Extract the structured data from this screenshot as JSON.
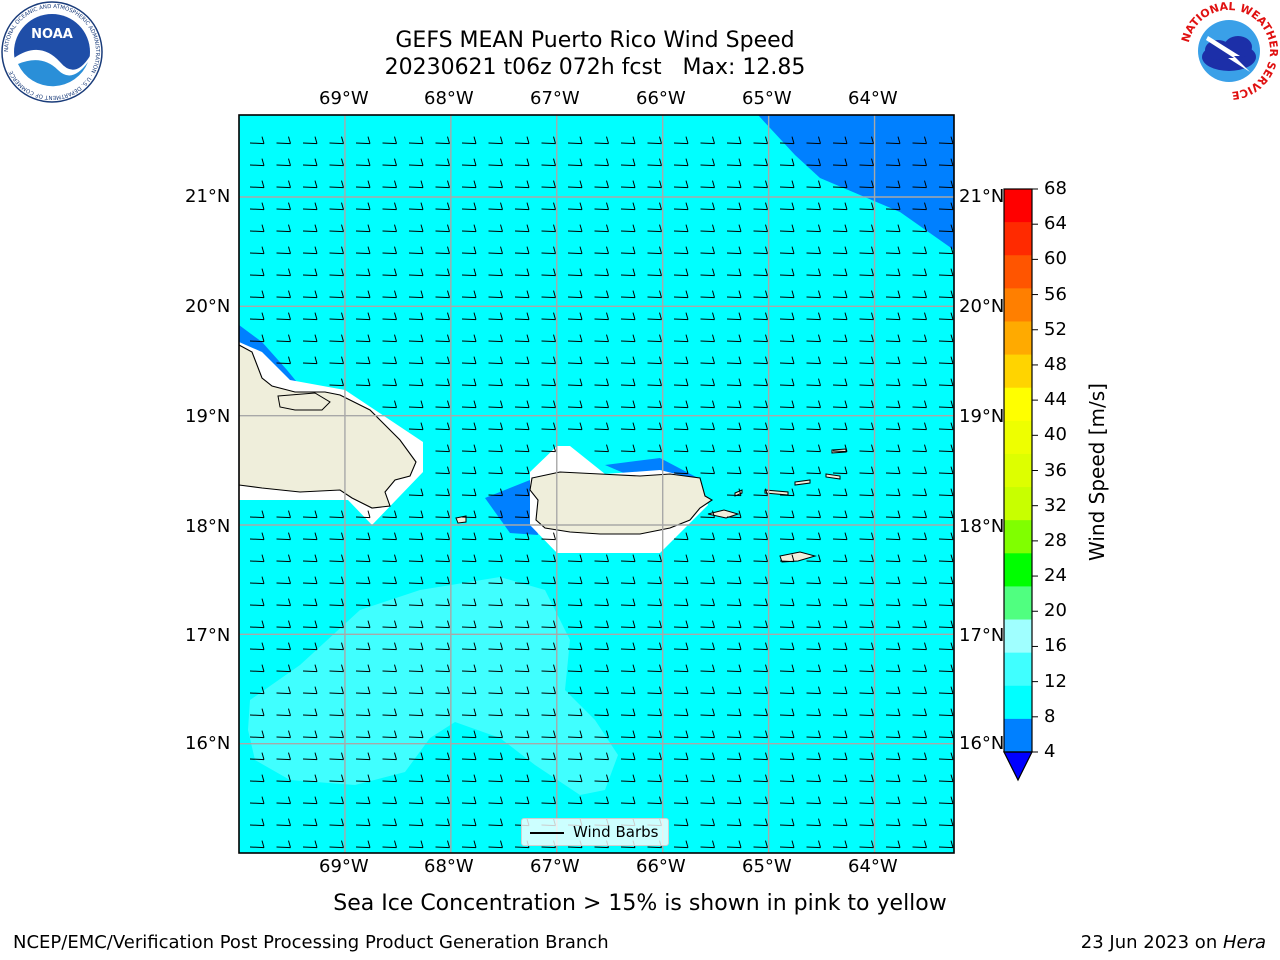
{
  "title": {
    "line1": "GEFS MEAN Puerto Rico Wind Speed",
    "line2": "20230621 t06z 072h fcst   Max: 12.85"
  },
  "map": {
    "lon_labels": [
      "69°W",
      "68°W",
      "67°W",
      "66°W",
      "65°W",
      "64°W"
    ],
    "lat_labels": [
      "21°N",
      "20°N",
      "19°N",
      "18°N",
      "17°N",
      "16°N"
    ],
    "lon_range": [
      -70.0,
      -63.25
    ],
    "lat_range": [
      15.0,
      21.75
    ],
    "gridlines": true,
    "legend": {
      "label": "Wind Barbs",
      "placement": "lower-center"
    },
    "field_colors": {
      "4_8": "#0080ff",
      "8_12": "#00ffff",
      "12_16": "#40ffff",
      "land": "#efeedb",
      "gap": "#ffffff"
    }
  },
  "colorbar": {
    "label": "Wind Speed [m/s]",
    "ticks": [
      "68",
      "64",
      "60",
      "56",
      "52",
      "48",
      "44",
      "40",
      "36",
      "32",
      "28",
      "24",
      "20",
      "16",
      "12",
      "8",
      "4"
    ],
    "colors_top_to_bottom": [
      "#ff0000",
      "#ff2a00",
      "#ff5500",
      "#ff7f00",
      "#ffaa00",
      "#ffd400",
      "#ffff00",
      "#eeff00",
      "#ddff00",
      "#c8ff00",
      "#80ff00",
      "#00ff00",
      "#50ff80",
      "#a0ffff",
      "#40ffff",
      "#00ffff",
      "#0080ff"
    ],
    "extend_color": "#0000ff"
  },
  "subtitle": "Sea Ice Concentration > 15% is shown in pink to yellow",
  "footer": {
    "left": "NCEP/EMC/Verification Post Processing Product Generation Branch",
    "date": "23 Jun 2023 on ",
    "host": "Hera"
  },
  "logos": {
    "noaa_text": "NOAA",
    "noaa_ring": "NATIONAL OCEANIC AND ATMOSPHERIC ADMINISTRATION · U.S. DEPARTMENT OF COMMERCE",
    "nws_ring": "NATIONAL WEATHER SERVICE"
  }
}
